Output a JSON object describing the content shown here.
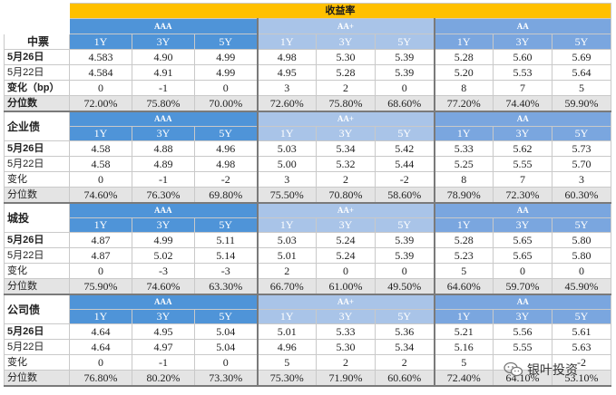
{
  "title": "收益率",
  "grades": [
    "AAA",
    "AA+",
    "AA"
  ],
  "tenors": [
    "1Y",
    "3Y",
    "5Y"
  ],
  "sections": [
    {
      "name": "中票",
      "rows": [
        {
          "label": "5月26日",
          "bold": true,
          "values": [
            "4.583",
            "4.90",
            "4.99",
            "4.98",
            "5.30",
            "5.39",
            "5.28",
            "5.60",
            "5.69"
          ]
        },
        {
          "label": "5月22日",
          "bold": false,
          "values": [
            "4.584",
            "4.91",
            "4.99",
            "4.95",
            "5.28",
            "5.39",
            "5.20",
            "5.53",
            "5.64"
          ]
        },
        {
          "label": "变化（bp）",
          "bold": true,
          "values": [
            "0",
            "-1",
            "0",
            "3",
            "2",
            "0",
            "8",
            "7",
            "5"
          ]
        },
        {
          "label": "分位数",
          "bold": true,
          "pct": true,
          "values": [
            "72.00%",
            "75.80%",
            "70.00%",
            "72.60%",
            "75.80%",
            "68.60%",
            "77.20%",
            "74.40%",
            "59.90%"
          ]
        }
      ]
    },
    {
      "name": "企业债",
      "rows": [
        {
          "label": "5月26日",
          "bold": true,
          "values": [
            "4.58",
            "4.88",
            "4.96",
            "5.03",
            "5.34",
            "5.42",
            "5.33",
            "5.62",
            "5.73"
          ]
        },
        {
          "label": "5月22日",
          "bold": false,
          "values": [
            "4.58",
            "4.89",
            "4.98",
            "5.00",
            "5.32",
            "5.44",
            "5.25",
            "5.55",
            "5.70"
          ]
        },
        {
          "label": "变化",
          "bold": false,
          "values": [
            "0",
            "-1",
            "-2",
            "3",
            "2",
            "-2",
            "8",
            "7",
            "3"
          ]
        },
        {
          "label": "分位数",
          "bold": false,
          "pct": true,
          "values": [
            "74.60%",
            "76.30%",
            "69.80%",
            "75.50%",
            "70.80%",
            "58.60%",
            "78.90%",
            "72.30%",
            "60.30%"
          ]
        }
      ]
    },
    {
      "name": "城投",
      "rows": [
        {
          "label": "5月26日",
          "bold": true,
          "values": [
            "4.87",
            "4.99",
            "5.11",
            "5.03",
            "5.24",
            "5.39",
            "5.28",
            "5.65",
            "5.80"
          ]
        },
        {
          "label": "5月22日",
          "bold": false,
          "values": [
            "4.87",
            "5.02",
            "5.14",
            "5.01",
            "5.24",
            "5.39",
            "5.23",
            "5.65",
            "5.80"
          ]
        },
        {
          "label": "变化",
          "bold": false,
          "values": [
            "0",
            "-3",
            "-3",
            "2",
            "0",
            "0",
            "5",
            "0",
            "0"
          ]
        },
        {
          "label": "分位数",
          "bold": false,
          "pct": true,
          "values": [
            "75.90%",
            "74.60%",
            "63.30%",
            "66.70%",
            "61.00%",
            "49.50%",
            "64.60%",
            "59.70%",
            "45.90%"
          ]
        }
      ]
    },
    {
      "name": "公司债",
      "rows": [
        {
          "label": "5月26日",
          "bold": true,
          "values": [
            "4.64",
            "4.95",
            "5.04",
            "5.01",
            "5.33",
            "5.36",
            "5.21",
            "5.56",
            "5.61"
          ]
        },
        {
          "label": "5月22日",
          "bold": false,
          "values": [
            "4.64",
            "4.97",
            "5.04",
            "4.96",
            "5.30",
            "5.34",
            "5.16",
            "5.55",
            "5.63"
          ]
        },
        {
          "label": "变化",
          "bold": false,
          "values": [
            "0",
            "-1",
            "0",
            "5",
            "2",
            "2",
            "5",
            "",
            "-2"
          ]
        },
        {
          "label": "分位数",
          "bold": false,
          "pct": true,
          "values": [
            "76.80%",
            "80.20%",
            "73.30%",
            "75.30%",
            "71.90%",
            "60.60%",
            "72.40%",
            "64.10%",
            "53.10%"
          ]
        }
      ]
    }
  ],
  "watermark": {
    "text": "银叶投资",
    "icon": "wechat-icon"
  }
}
